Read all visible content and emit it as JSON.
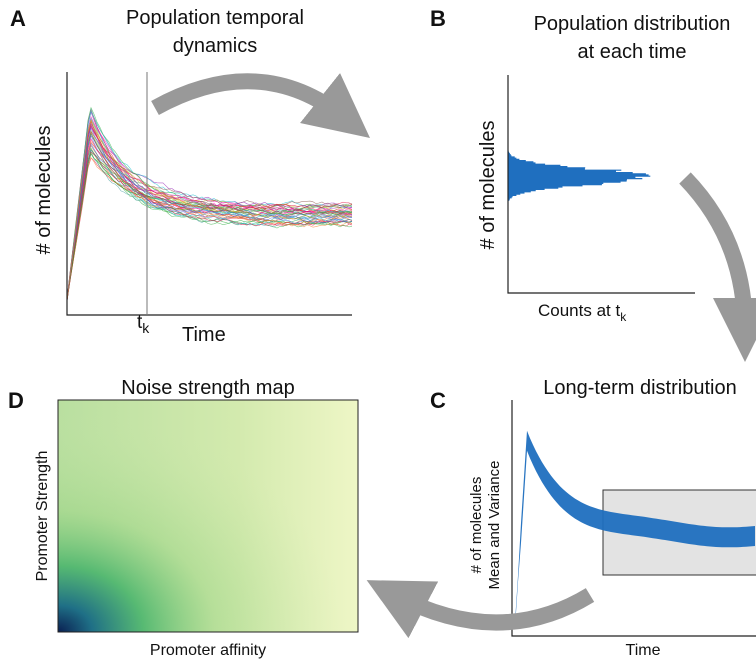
{
  "panel_a": {
    "label": "A",
    "title": [
      "Population temporal",
      "dynamics"
    ],
    "y_label": "# of molecules",
    "x_label": "Time",
    "marker": {
      "text": "t",
      "sub": "k"
    }
  },
  "panel_b": {
    "label": "B",
    "title": [
      "Population distribution",
      "at each time"
    ],
    "y_label": "# of molecules",
    "x_label": {
      "text": "Counts at t",
      "sub": "k"
    }
  },
  "panel_c": {
    "label": "C",
    "title": "Long-term distribution",
    "y_label": [
      "# of molecules",
      "Mean and Variance"
    ],
    "x_label": "Time"
  },
  "panel_d": {
    "label": "D",
    "title": "Noise strength map",
    "y_label": "Promoter Strength",
    "x_label": "Promoter affinity"
  }
}
